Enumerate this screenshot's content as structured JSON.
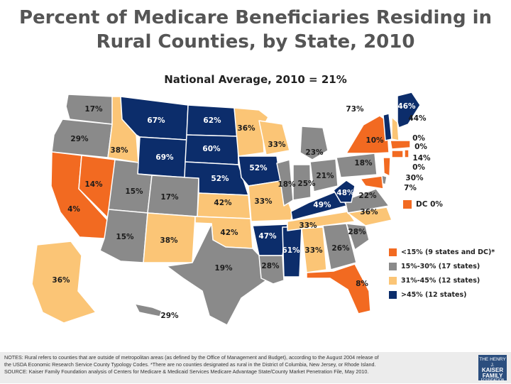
{
  "title_line1": "Percent of Medicare Beneficiaries Residing in",
  "title_line2": "Rural Counties, by State, 2010",
  "subtitle": "National Average, 2010 = 21%",
  "colors": {
    "lt15": "#f26a21",
    "mid": "#8a8a8a",
    "high": "#fbc576",
    "gt45": "#0c2d6b",
    "water": "#ffffff"
  },
  "states": [
    {
      "id": "WA",
      "value": "17%"
    },
    {
      "id": "OR",
      "value": "29%"
    },
    {
      "id": "CA",
      "value": "4%"
    },
    {
      "id": "NV",
      "value": "14%"
    },
    {
      "id": "ID",
      "value": "38%"
    },
    {
      "id": "MT",
      "value": "67%"
    },
    {
      "id": "WY",
      "value": "69%"
    },
    {
      "id": "UT",
      "value": "15%"
    },
    {
      "id": "AZ",
      "value": "15%"
    },
    {
      "id": "CO",
      "value": "17%"
    },
    {
      "id": "NM",
      "value": "38%"
    },
    {
      "id": "ND",
      "value": "62%"
    },
    {
      "id": "SD",
      "value": "60%"
    },
    {
      "id": "NE",
      "value": "52%"
    },
    {
      "id": "KS",
      "value": "42%"
    },
    {
      "id": "OK",
      "value": "42%"
    },
    {
      "id": "TX",
      "value": "19%"
    },
    {
      "id": "MN",
      "value": "36%"
    },
    {
      "id": "IA",
      "value": "52%"
    },
    {
      "id": "MO",
      "value": "33%"
    },
    {
      "id": "AR",
      "value": "47%"
    },
    {
      "id": "LA",
      "value": "28%"
    },
    {
      "id": "WI",
      "value": "33%"
    },
    {
      "id": "IL",
      "value": "18%"
    },
    {
      "id": "MS",
      "value": "61%"
    },
    {
      "id": "MI",
      "value": "23%"
    },
    {
      "id": "IN",
      "value": "25%"
    },
    {
      "id": "OH",
      "value": "21%"
    },
    {
      "id": "KY",
      "value": "49%"
    },
    {
      "id": "TN",
      "value": "33%"
    },
    {
      "id": "AL",
      "value": "33%"
    },
    {
      "id": "GA",
      "value": "26%"
    },
    {
      "id": "FL",
      "value": "8%"
    },
    {
      "id": "SC",
      "value": "28%"
    },
    {
      "id": "NC",
      "value": "36%"
    },
    {
      "id": "VA",
      "value": "22%"
    },
    {
      "id": "WV",
      "value": "48%"
    },
    {
      "id": "PA",
      "value": "18%"
    },
    {
      "id": "NY",
      "value": "10%"
    },
    {
      "id": "VT",
      "value": "73%"
    },
    {
      "id": "ME",
      "value": "46%"
    },
    {
      "id": "NH",
      "value": "44%"
    },
    {
      "id": "MA",
      "value": "0%"
    },
    {
      "id": "RI",
      "value": "0%"
    },
    {
      "id": "CT",
      "value": "14%"
    },
    {
      "id": "NJ",
      "value": "0%"
    },
    {
      "id": "DE",
      "value": "30%"
    },
    {
      "id": "MD",
      "value": "7%"
    },
    {
      "id": "AK",
      "value": "36%"
    },
    {
      "id": "HI",
      "value": "29%"
    }
  ],
  "dc": {
    "label": "DC 0%"
  },
  "legend": [
    {
      "key": "lt15",
      "label": "<15% (9 states and DC)*"
    },
    {
      "key": "mid",
      "label": "15%-30% (17 states)"
    },
    {
      "key": "high",
      "label": "31%-45% (12 states)"
    },
    {
      "key": "gt45",
      "label": ">45% (12 states)"
    }
  ],
  "notes": {
    "line1": "NOTES: Rural refers to counties that are outside of metropolitan areas (as defined by the Office of Management and Budget), according to the August 2004 release of",
    "line2": "the USDA Economic Research Service County Typology Codes.  *There are no counties designated as rural in the District of Columbia, New Jersey, or Rhode Island.",
    "line3": "SOURCE: Kaiser Family Foundation analysis of Centers for Medicare & Medicaid Services Medicare Advantage State/County Market Penetration File, May 2010."
  },
  "logo": {
    "line1": "THE HENRY J.",
    "line2": "KAISER",
    "line3": "FAMILY",
    "line4": "FOUNDATION"
  }
}
